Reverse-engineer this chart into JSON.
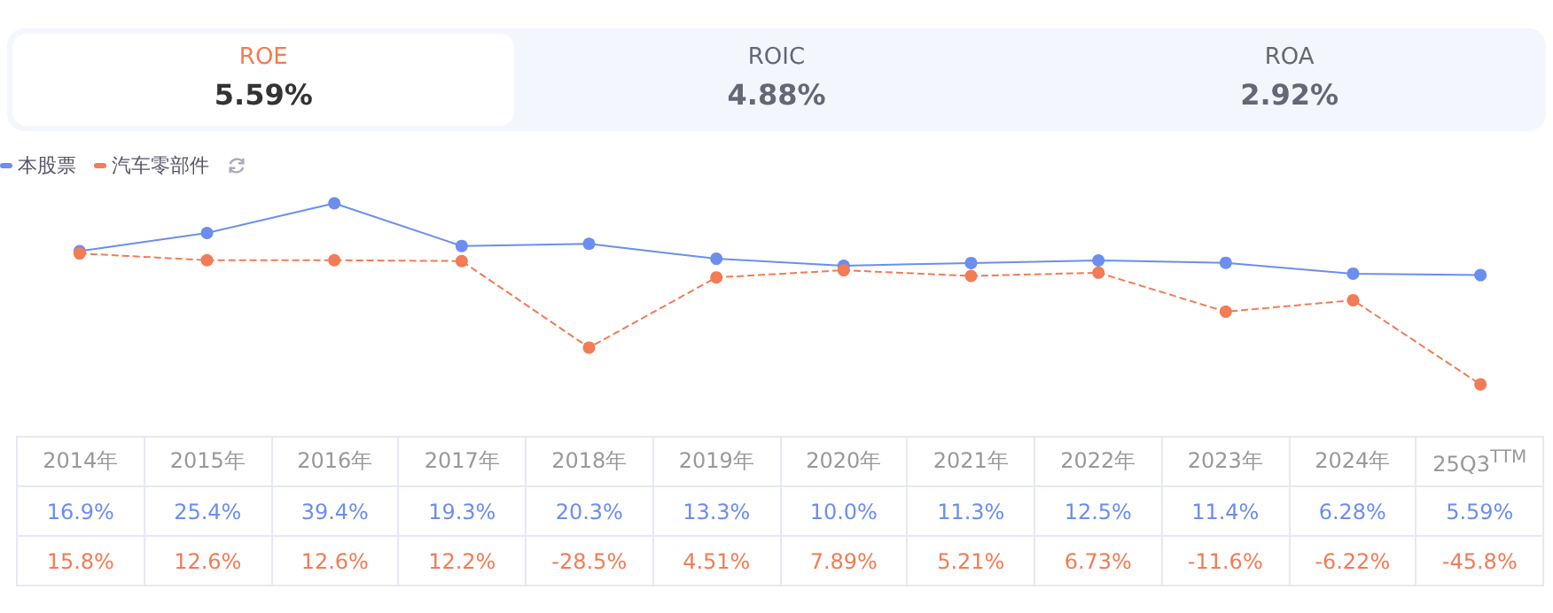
{
  "chart_data": {
    "type": "line",
    "annotations": [
      "ROE",
      "5.59%",
      "ROIC",
      "4.88%",
      "ROA",
      "2.92%"
    ],
    "categories": [
      "2014年",
      "2015年",
      "2016年",
      "2017年",
      "2018年",
      "2019年",
      "2020年",
      "2021年",
      "2022年",
      "2023年",
      "2024年",
      "25Q3$^{TTM}$"
    ],
    "series": [
      {
        "name": "本股票",
        "color": "#6b8ef0",
        "line_style": "solid",
        "values": [
          16.9,
          25.4,
          39.4,
          19.3,
          20.3,
          13.3,
          10.0,
          11.3,
          12.5,
          11.4,
          6.28,
          5.59
        ],
        "value_labels": [
          "16.9%",
          "25.4%",
          "39.4%",
          "19.3%",
          "20.3%",
          "13.3%",
          "10.0%",
          "11.3%",
          "12.5%",
          "11.4%",
          "6.28%",
          "5.59%"
        ]
      },
      {
        "name": "汽车零部件",
        "color": "#f27c55",
        "line_style": "dashed",
        "values": [
          15.8,
          12.6,
          12.6,
          12.2,
          -28.5,
          4.51,
          7.89,
          5.21,
          6.73,
          -11.6,
          -6.22,
          -45.8
        ],
        "value_labels": [
          "15.8%",
          "12.6%",
          "12.6%",
          "12.2%",
          "-28.5%",
          "4.51%",
          "7.89%",
          "5.21%",
          "6.73%",
          "-11.6%",
          "-6.22%",
          "-45.8%"
        ]
      }
    ],
    "marker": "circle",
    "legend": "top left"
  }
}
